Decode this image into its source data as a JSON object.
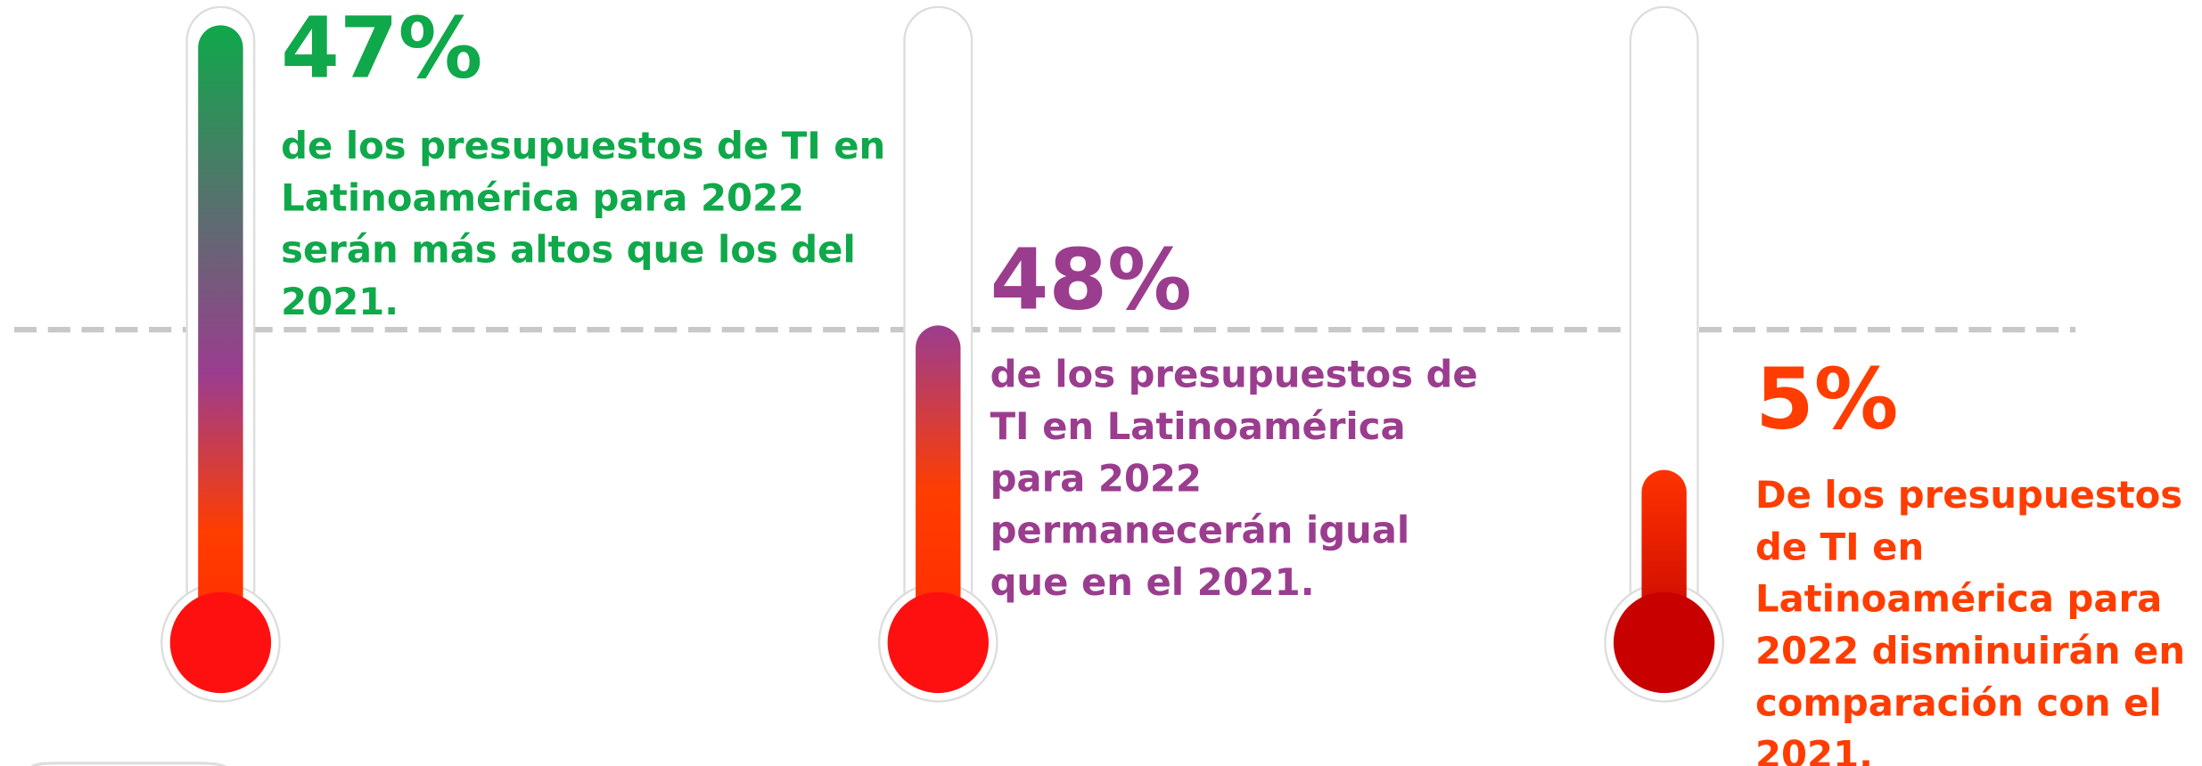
{
  "items": [
    {
      "value": "47%",
      "lines": [
        "de los presupuestos de TI en",
        "Latinoamérica para  2022",
        "serán más altos que los del",
        "2021."
      ]
    },
    {
      "value": "48%",
      "lines": [
        "de los presupuestos de",
        "TI en Latinoamérica",
        "para 2022",
        "permanecerán igual",
        "que en el 2021."
      ]
    },
    {
      "value": "5%",
      "lines": [
        "De los presupuestos",
        "de TI en",
        "Latinoamérica para",
        "2022 disminuirán en",
        "comparación con el",
        "2021."
      ]
    }
  ]
}
